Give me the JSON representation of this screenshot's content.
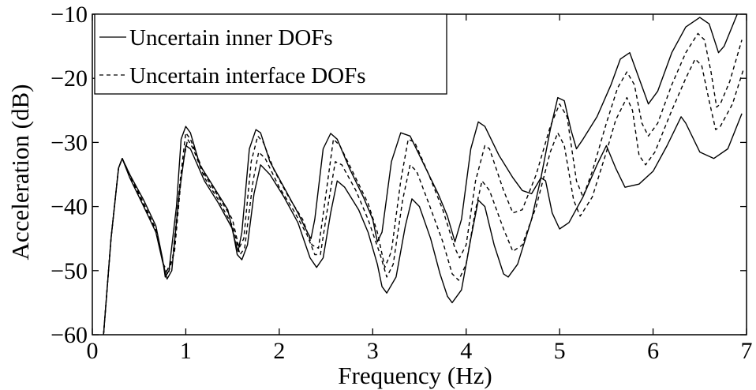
{
  "chart_data": {
    "type": "line",
    "title": "",
    "xlabel": "Frequency (Hz)",
    "ylabel": "Acceleration (dB)",
    "xlim": [
      0,
      7
    ],
    "ylim": [
      -60,
      -10
    ],
    "xticks": [
      0,
      1,
      2,
      3,
      4,
      5,
      6,
      7
    ],
    "yticks": [
      -60,
      -50,
      -40,
      -30,
      -20,
      -10
    ],
    "grid": false,
    "legend_position": "top-left",
    "legend": [
      {
        "label": "Uncertain inner DOFs",
        "style": "solid"
      },
      {
        "label": "Uncertain interface DOFs",
        "style": "dashed"
      }
    ],
    "series": [
      {
        "group": "inner",
        "style": "solid",
        "points": [
          [
            0.12,
            -60
          ],
          [
            0.2,
            -45
          ],
          [
            0.28,
            -34
          ],
          [
            0.32,
            -32.5
          ],
          [
            0.4,
            -35
          ],
          [
            0.55,
            -39
          ],
          [
            0.68,
            -43
          ],
          [
            0.75,
            -48
          ],
          [
            0.78,
            -51
          ],
          [
            0.82,
            -50
          ],
          [
            0.9,
            -40
          ],
          [
            0.95,
            -29.5
          ],
          [
            1.0,
            -27.5
          ],
          [
            1.05,
            -28.5
          ],
          [
            1.15,
            -33.5
          ],
          [
            1.3,
            -37
          ],
          [
            1.45,
            -40.5
          ],
          [
            1.52,
            -45
          ],
          [
            1.56,
            -47
          ],
          [
            1.6,
            -44
          ],
          [
            1.68,
            -31
          ],
          [
            1.75,
            -28
          ],
          [
            1.8,
            -28.5
          ],
          [
            1.9,
            -33
          ],
          [
            2.05,
            -37
          ],
          [
            2.2,
            -41
          ],
          [
            2.3,
            -44
          ],
          [
            2.34,
            -45
          ],
          [
            2.38,
            -42
          ],
          [
            2.47,
            -31
          ],
          [
            2.55,
            -28.6
          ],
          [
            2.62,
            -29.5
          ],
          [
            2.75,
            -34
          ],
          [
            2.9,
            -38.5
          ],
          [
            3.0,
            -42
          ],
          [
            3.05,
            -45.5
          ],
          [
            3.1,
            -44
          ],
          [
            3.2,
            -33
          ],
          [
            3.3,
            -28.5
          ],
          [
            3.4,
            -29
          ],
          [
            3.55,
            -33.5
          ],
          [
            3.7,
            -38
          ],
          [
            3.8,
            -41.5
          ],
          [
            3.88,
            -45.5
          ],
          [
            3.95,
            -42
          ],
          [
            4.05,
            -31
          ],
          [
            4.13,
            -26.8
          ],
          [
            4.2,
            -27.5
          ],
          [
            4.35,
            -32
          ],
          [
            4.5,
            -35.5
          ],
          [
            4.6,
            -37.5
          ],
          [
            4.7,
            -38
          ],
          [
            4.8,
            -35.5
          ],
          [
            4.9,
            -28
          ],
          [
            4.98,
            -23
          ],
          [
            5.05,
            -23.5
          ],
          [
            5.12,
            -28
          ],
          [
            5.18,
            -31
          ],
          [
            5.25,
            -29.5
          ],
          [
            5.4,
            -26
          ],
          [
            5.55,
            -21
          ],
          [
            5.65,
            -17
          ],
          [
            5.75,
            -16
          ],
          [
            5.85,
            -20
          ],
          [
            5.95,
            -24
          ],
          [
            6.05,
            -22
          ],
          [
            6.2,
            -16
          ],
          [
            6.35,
            -12
          ],
          [
            6.5,
            -10.5
          ],
          [
            6.6,
            -11.5
          ],
          [
            6.7,
            -16
          ],
          [
            6.76,
            -15
          ],
          [
            6.9,
            -10
          ]
        ]
      },
      {
        "group": "inner",
        "style": "solid",
        "points": [
          [
            0.12,
            -60
          ],
          [
            0.2,
            -45
          ],
          [
            0.28,
            -34
          ],
          [
            0.32,
            -32.5
          ],
          [
            0.4,
            -35.5
          ],
          [
            0.55,
            -40
          ],
          [
            0.68,
            -44
          ],
          [
            0.75,
            -48.5
          ],
          [
            0.8,
            -51.3
          ],
          [
            0.85,
            -50
          ],
          [
            0.93,
            -38
          ],
          [
            1.0,
            -30.5
          ],
          [
            1.05,
            -31
          ],
          [
            1.2,
            -36
          ],
          [
            1.35,
            -39.5
          ],
          [
            1.5,
            -43.5
          ],
          [
            1.55,
            -47.5
          ],
          [
            1.6,
            -48.3
          ],
          [
            1.66,
            -46
          ],
          [
            1.73,
            -38
          ],
          [
            1.8,
            -33.5
          ],
          [
            1.9,
            -35
          ],
          [
            2.05,
            -38.5
          ],
          [
            2.2,
            -42.5
          ],
          [
            2.33,
            -48
          ],
          [
            2.4,
            -49.5
          ],
          [
            2.47,
            -48
          ],
          [
            2.55,
            -41
          ],
          [
            2.62,
            -36
          ],
          [
            2.7,
            -37
          ],
          [
            2.85,
            -40.5
          ],
          [
            2.95,
            -44
          ],
          [
            3.05,
            -49
          ],
          [
            3.1,
            -52.5
          ],
          [
            3.15,
            -53.5
          ],
          [
            3.25,
            -51
          ],
          [
            3.35,
            -43
          ],
          [
            3.42,
            -38.8
          ],
          [
            3.5,
            -40
          ],
          [
            3.62,
            -45
          ],
          [
            3.72,
            -50.5
          ],
          [
            3.8,
            -54
          ],
          [
            3.85,
            -55
          ],
          [
            3.95,
            -53
          ],
          [
            4.05,
            -45
          ],
          [
            4.13,
            -39
          ],
          [
            4.2,
            -40
          ],
          [
            4.3,
            -46
          ],
          [
            4.4,
            -50.5
          ],
          [
            4.45,
            -51
          ],
          [
            4.55,
            -49
          ],
          [
            4.7,
            -42
          ],
          [
            4.8,
            -35.5
          ],
          [
            4.85,
            -36
          ],
          [
            4.92,
            -41
          ],
          [
            5.0,
            -43.5
          ],
          [
            5.1,
            -42.5
          ],
          [
            5.25,
            -38.5
          ],
          [
            5.4,
            -33.5
          ],
          [
            5.5,
            -30.5
          ],
          [
            5.6,
            -34
          ],
          [
            5.7,
            -37
          ],
          [
            5.85,
            -36.5
          ],
          [
            6.0,
            -34.5
          ],
          [
            6.15,
            -30.5
          ],
          [
            6.3,
            -26
          ],
          [
            6.35,
            -27
          ],
          [
            6.5,
            -31.5
          ],
          [
            6.65,
            -32.5
          ],
          [
            6.8,
            -31
          ],
          [
            6.95,
            -25.5
          ]
        ]
      },
      {
        "group": "interface",
        "style": "dashed",
        "points": [
          [
            0.12,
            -60
          ],
          [
            0.2,
            -45
          ],
          [
            0.28,
            -34
          ],
          [
            0.32,
            -32.5
          ],
          [
            0.4,
            -35
          ],
          [
            0.55,
            -39.5
          ],
          [
            0.68,
            -43.5
          ],
          [
            0.76,
            -49
          ],
          [
            0.8,
            -50
          ],
          [
            0.86,
            -48
          ],
          [
            0.94,
            -36
          ],
          [
            1.0,
            -28.5
          ],
          [
            1.05,
            -29.5
          ],
          [
            1.2,
            -35
          ],
          [
            1.35,
            -38.5
          ],
          [
            1.5,
            -42
          ],
          [
            1.57,
            -46.5
          ],
          [
            1.62,
            -45
          ],
          [
            1.7,
            -33
          ],
          [
            1.77,
            -29
          ],
          [
            1.83,
            -30
          ],
          [
            1.95,
            -34.5
          ],
          [
            2.1,
            -38.5
          ],
          [
            2.25,
            -42
          ],
          [
            2.35,
            -46
          ],
          [
            2.42,
            -46.5
          ],
          [
            2.5,
            -38
          ],
          [
            2.58,
            -29.5
          ],
          [
            2.65,
            -30.5
          ],
          [
            2.8,
            -35
          ],
          [
            2.95,
            -39.5
          ],
          [
            3.05,
            -44
          ],
          [
            3.13,
            -49.5
          ],
          [
            3.2,
            -47
          ],
          [
            3.3,
            -36
          ],
          [
            3.38,
            -29.5
          ],
          [
            3.45,
            -30
          ],
          [
            3.6,
            -35
          ],
          [
            3.75,
            -40.5
          ],
          [
            3.88,
            -46.5
          ],
          [
            3.93,
            -48
          ],
          [
            4.0,
            -46
          ],
          [
            4.1,
            -36
          ],
          [
            4.2,
            -30.5
          ],
          [
            4.25,
            -31
          ],
          [
            4.4,
            -37.5
          ],
          [
            4.5,
            -41
          ],
          [
            4.6,
            -40.5
          ],
          [
            4.75,
            -35
          ],
          [
            4.9,
            -27.5
          ],
          [
            5.0,
            -24
          ],
          [
            5.08,
            -26
          ],
          [
            5.18,
            -36
          ],
          [
            5.25,
            -38.5
          ],
          [
            5.35,
            -34.5
          ],
          [
            5.5,
            -27
          ],
          [
            5.62,
            -21.5
          ],
          [
            5.72,
            -19
          ],
          [
            5.8,
            -21
          ],
          [
            5.88,
            -27
          ],
          [
            5.95,
            -29
          ],
          [
            6.05,
            -27
          ],
          [
            6.2,
            -21
          ],
          [
            6.35,
            -16
          ],
          [
            6.48,
            -13
          ],
          [
            6.55,
            -14
          ],
          [
            6.62,
            -19
          ],
          [
            6.68,
            -24.5
          ],
          [
            6.72,
            -24
          ],
          [
            6.82,
            -20.5
          ],
          [
            6.95,
            -14
          ]
        ]
      },
      {
        "group": "interface",
        "style": "dashed",
        "points": [
          [
            0.12,
            -60
          ],
          [
            0.2,
            -45
          ],
          [
            0.28,
            -34
          ],
          [
            0.32,
            -32.5
          ],
          [
            0.4,
            -35.3
          ],
          [
            0.55,
            -39.8
          ],
          [
            0.68,
            -43.8
          ],
          [
            0.77,
            -49.5
          ],
          [
            0.81,
            -50.6
          ],
          [
            0.88,
            -47
          ],
          [
            0.96,
            -34
          ],
          [
            1.02,
            -29.5
          ],
          [
            1.08,
            -31
          ],
          [
            1.2,
            -35.5
          ],
          [
            1.35,
            -39
          ],
          [
            1.5,
            -43
          ],
          [
            1.58,
            -47.5
          ],
          [
            1.63,
            -46.5
          ],
          [
            1.72,
            -36
          ],
          [
            1.78,
            -31.5
          ],
          [
            1.85,
            -32.5
          ],
          [
            2.0,
            -37
          ],
          [
            2.15,
            -40.5
          ],
          [
            2.3,
            -44.5
          ],
          [
            2.38,
            -47.5
          ],
          [
            2.44,
            -47.5
          ],
          [
            2.52,
            -40
          ],
          [
            2.6,
            -33
          ],
          [
            2.67,
            -33.5
          ],
          [
            2.82,
            -37.5
          ],
          [
            2.95,
            -42
          ],
          [
            3.08,
            -47.5
          ],
          [
            3.15,
            -51
          ],
          [
            3.22,
            -49
          ],
          [
            3.32,
            -39
          ],
          [
            3.4,
            -33.5
          ],
          [
            3.47,
            -34.5
          ],
          [
            3.6,
            -39.5
          ],
          [
            3.75,
            -45.5
          ],
          [
            3.85,
            -50.5
          ],
          [
            3.92,
            -51.5
          ],
          [
            4.0,
            -49
          ],
          [
            4.1,
            -40.5
          ],
          [
            4.17,
            -36
          ],
          [
            4.25,
            -37.5
          ],
          [
            4.4,
            -43.5
          ],
          [
            4.5,
            -47
          ],
          [
            4.6,
            -46
          ],
          [
            4.75,
            -40
          ],
          [
            4.9,
            -31.5
          ],
          [
            4.98,
            -28.5
          ],
          [
            5.05,
            -30.5
          ],
          [
            5.15,
            -39
          ],
          [
            5.22,
            -41.5
          ],
          [
            5.35,
            -38.5
          ],
          [
            5.5,
            -31.5
          ],
          [
            5.6,
            -26.5
          ],
          [
            5.72,
            -23
          ],
          [
            5.78,
            -25
          ],
          [
            5.85,
            -32
          ],
          [
            5.92,
            -33.5
          ],
          [
            6.02,
            -31.5
          ],
          [
            6.2,
            -25
          ],
          [
            6.35,
            -20
          ],
          [
            6.45,
            -17
          ],
          [
            6.52,
            -18
          ],
          [
            6.6,
            -23.5
          ],
          [
            6.67,
            -28
          ],
          [
            6.72,
            -27.5
          ],
          [
            6.85,
            -24
          ],
          [
            6.97,
            -18.5
          ]
        ]
      }
    ]
  }
}
